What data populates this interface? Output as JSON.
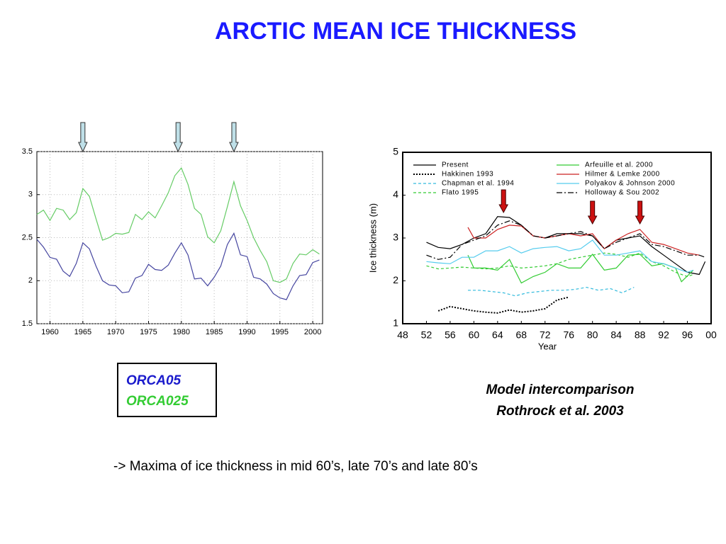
{
  "title": "ARCTIC MEAN ICE THICKNESS",
  "note": "-> Maxima of ice thickness in mid 60’s, late 70’s and late 80’s",
  "chart_data": [
    {
      "type": "line",
      "x": [
        1958,
        1959,
        1960,
        1961,
        1962,
        1963,
        1964,
        1965,
        1966,
        1967,
        1968,
        1969,
        1970,
        1971,
        1972,
        1973,
        1974,
        1975,
        1976,
        1977,
        1978,
        1979,
        1980,
        1981,
        1982,
        1983,
        1984,
        1985,
        1986,
        1987,
        1988,
        1989,
        1990,
        1991,
        1992,
        1993,
        1994,
        1995,
        1996,
        1997,
        1998,
        1999,
        2000,
        2001
      ],
      "series": [
        {
          "name": "ORCA05",
          "color": "#4646a0",
          "legend_color": "#1a1acc",
          "values": [
            2.48,
            2.39,
            2.27,
            2.25,
            2.11,
            2.05,
            2.2,
            2.44,
            2.37,
            2.17,
            2.0,
            1.95,
            1.94,
            1.86,
            1.87,
            2.03,
            2.06,
            2.19,
            2.13,
            2.12,
            2.18,
            2.32,
            2.44,
            2.3,
            2.02,
            2.03,
            1.94,
            2.04,
            2.17,
            2.42,
            2.55,
            2.3,
            2.28,
            2.04,
            2.02,
            1.96,
            1.85,
            1.8,
            1.78,
            1.94,
            2.06,
            2.07,
            2.21,
            2.24
          ]
        },
        {
          "name": "ORCA025",
          "color": "#66cc66",
          "legend_color": "#33cc33",
          "values": [
            2.77,
            2.82,
            2.7,
            2.84,
            2.82,
            2.71,
            2.79,
            3.07,
            2.98,
            2.72,
            2.47,
            2.5,
            2.55,
            2.54,
            2.56,
            2.77,
            2.71,
            2.8,
            2.73,
            2.87,
            3.02,
            3.22,
            3.31,
            3.12,
            2.84,
            2.77,
            2.51,
            2.44,
            2.58,
            2.86,
            3.15,
            2.87,
            2.7,
            2.5,
            2.35,
            2.22,
            2.0,
            1.98,
            2.02,
            2.2,
            2.31,
            2.3,
            2.36,
            2.31
          ]
        }
      ],
      "xlim": [
        1958,
        2001.5
      ],
      "ylim": [
        1.5,
        3.5
      ],
      "xticks": [
        1960,
        1965,
        1970,
        1975,
        1980,
        1985,
        1990,
        1995,
        2000
      ],
      "yticks": [
        1.5,
        2,
        2.5,
        3,
        3.5
      ],
      "grid": true,
      "arrows": [
        1965,
        1979.5,
        1988
      ]
    },
    {
      "type": "line",
      "xlabel": "Year",
      "ylabel": "Ice thickness (m)",
      "caption": [
        "Model intercomparison",
        "Rothrock et al. 2003"
      ],
      "series": [
        {
          "name": "Present",
          "color": "#000000",
          "style": "solid",
          "x": [
            52,
            54,
            56,
            58,
            60,
            62,
            64,
            66,
            68,
            70,
            72,
            74,
            76,
            78,
            80,
            82,
            84,
            86,
            88,
            90,
            92,
            94,
            96,
            98,
            99
          ],
          "values": [
            2.9,
            2.78,
            2.75,
            2.85,
            3.0,
            3.1,
            3.5,
            3.48,
            3.3,
            3.05,
            3.0,
            3.1,
            3.1,
            3.1,
            3.05,
            2.75,
            2.95,
            3.0,
            3.05,
            2.8,
            2.6,
            2.4,
            2.2,
            2.15,
            2.45
          ]
        },
        {
          "name": "Hakkinen 1993",
          "color": "#000000",
          "style": "dotted",
          "x": [
            54,
            56,
            58,
            60,
            62,
            64,
            66,
            68,
            70,
            72,
            74,
            76
          ],
          "values": [
            1.3,
            1.4,
            1.35,
            1.3,
            1.27,
            1.25,
            1.32,
            1.27,
            1.3,
            1.35,
            1.55,
            1.62
          ]
        },
        {
          "name": "Chapman et al. 1994",
          "color": "#33bbdd",
          "style": "dashed",
          "x": [
            59,
            61,
            63,
            65,
            67,
            69,
            71,
            73,
            75,
            77,
            79,
            81,
            83,
            85,
            87
          ],
          "values": [
            1.78,
            1.78,
            1.75,
            1.72,
            1.65,
            1.72,
            1.75,
            1.78,
            1.78,
            1.8,
            1.85,
            1.78,
            1.82,
            1.72,
            1.85
          ]
        },
        {
          "name": "Flato 1995",
          "color": "#33cc33",
          "style": "dashed",
          "x": [
            52,
            54,
            56,
            58,
            60,
            62,
            64,
            66,
            68,
            70,
            72,
            74,
            76,
            78,
            80,
            82,
            84,
            86,
            88,
            90,
            92,
            94,
            96,
            97
          ],
          "values": [
            2.35,
            2.28,
            2.3,
            2.32,
            2.3,
            2.28,
            2.3,
            2.35,
            2.3,
            2.32,
            2.35,
            2.4,
            2.5,
            2.55,
            2.6,
            2.65,
            2.62,
            2.55,
            2.65,
            2.45,
            2.35,
            2.2,
            2.1,
            2.15
          ]
        },
        {
          "name": "Arfeuille et al. 2000",
          "color": "#33cc33",
          "style": "solid",
          "x": [
            59,
            60,
            62,
            64,
            66,
            68,
            70,
            72,
            74,
            76,
            78,
            80,
            82,
            84,
            86,
            88,
            90,
            92,
            94,
            95,
            97
          ],
          "values": [
            2.6,
            2.3,
            2.3,
            2.25,
            2.5,
            1.95,
            2.1,
            2.2,
            2.4,
            2.3,
            2.3,
            2.62,
            2.25,
            2.3,
            2.6,
            2.62,
            2.35,
            2.4,
            2.3,
            1.98,
            2.25
          ]
        },
        {
          "name": "Hilmer & Lemke 2000",
          "color": "#cc2222",
          "style": "solid",
          "x": [
            59,
            60,
            62,
            64,
            66,
            68,
            70,
            72,
            74,
            76,
            78,
            80,
            82,
            84,
            86,
            88,
            90,
            92,
            94,
            96,
            98
          ],
          "values": [
            3.25,
            3.0,
            3.0,
            3.2,
            3.3,
            3.28,
            3.05,
            3.0,
            3.05,
            3.1,
            3.05,
            3.1,
            2.75,
            2.95,
            3.1,
            3.2,
            2.9,
            2.85,
            2.75,
            2.65,
            2.6
          ]
        },
        {
          "name": "Polyakov & Johnson 2000",
          "color": "#55ccee",
          "style": "solid",
          "x": [
            52,
            54,
            56,
            58,
            60,
            62,
            64,
            66,
            68,
            70,
            72,
            74,
            76,
            78,
            80,
            82,
            84,
            86,
            88,
            90,
            92,
            94,
            96,
            97
          ],
          "values": [
            2.45,
            2.42,
            2.4,
            2.55,
            2.55,
            2.7,
            2.7,
            2.8,
            2.65,
            2.75,
            2.78,
            2.8,
            2.7,
            2.75,
            2.95,
            2.6,
            2.6,
            2.65,
            2.7,
            2.45,
            2.4,
            2.3,
            2.2,
            2.25
          ]
        },
        {
          "name": "Holloway & Sou 2002",
          "color": "#000000",
          "style": "dashdot",
          "x": [
            52,
            54,
            56,
            58,
            60,
            62,
            64,
            66,
            68,
            70,
            72,
            74,
            76,
            78,
            80,
            82,
            84,
            86,
            88,
            90,
            92,
            94,
            96,
            98,
            99
          ],
          "values": [
            2.6,
            2.5,
            2.55,
            2.85,
            2.95,
            3.05,
            3.3,
            3.4,
            3.3,
            3.05,
            3.0,
            3.05,
            3.1,
            3.15,
            3.05,
            2.75,
            2.9,
            3.0,
            3.1,
            2.85,
            2.8,
            2.7,
            2.6,
            2.6,
            2.55
          ]
        }
      ],
      "xlim": [
        48,
        100
      ],
      "ylim": [
        1,
        5
      ],
      "xticks": [
        48,
        52,
        56,
        60,
        64,
        68,
        72,
        76,
        80,
        84,
        88,
        92,
        96,
        {
          "value": 100,
          "label": "00"
        }
      ],
      "yticks": [
        1,
        2,
        3,
        4,
        5
      ],
      "arrows": [
        65,
        80,
        88
      ]
    }
  ]
}
